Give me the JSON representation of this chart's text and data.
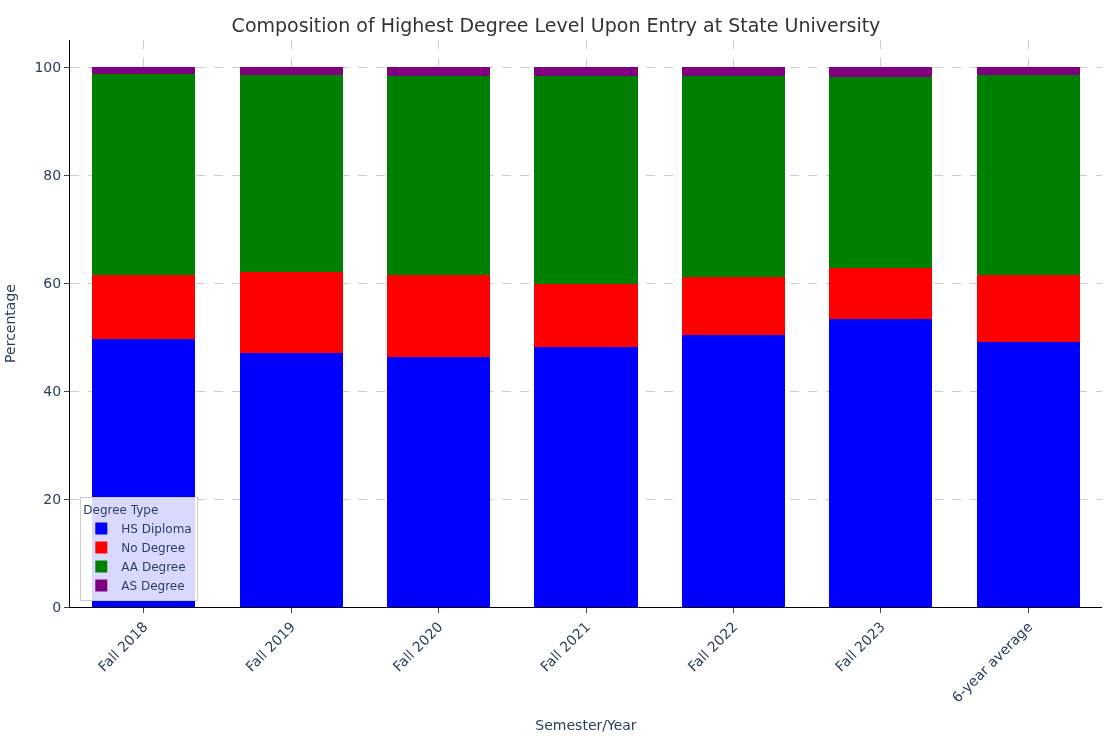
{
  "chart_data": {
    "type": "bar",
    "title": "Composition of Highest Degree Level Upon Entry at State University",
    "xlabel": "Semester/Year",
    "ylabel": "Percentage",
    "legend_title": "Degree Type",
    "categories": [
      "Fall 2018",
      "Fall 2019",
      "Fall 2020",
      "Fall 2021",
      "Fall 2022",
      "Fall 2023",
      "6-year average"
    ],
    "stacked": true,
    "series": [
      {
        "name": "HS Diploma",
        "color": "#0000ff",
        "values": [
          49.7,
          47.1,
          46.3,
          48.2,
          50.3,
          53.4,
          49.1
        ]
      },
      {
        "name": "No Degree",
        "color": "#ff0000",
        "values": [
          11.7,
          15.0,
          15.2,
          11.7,
          10.8,
          9.4,
          12.3
        ]
      },
      {
        "name": "AA Degree",
        "color": "#008000",
        "values": [
          37.3,
          36.5,
          36.9,
          38.4,
          37.3,
          35.4,
          37.1
        ]
      },
      {
        "name": "AS Degree",
        "color": "#800080",
        "values": [
          1.3,
          1.4,
          1.6,
          1.7,
          1.6,
          1.8,
          1.5
        ]
      }
    ],
    "ylim": [
      0,
      105
    ],
    "yticks": [
      0,
      20,
      40,
      60,
      80,
      100
    ],
    "grid": true,
    "legend": "bottom left"
  }
}
